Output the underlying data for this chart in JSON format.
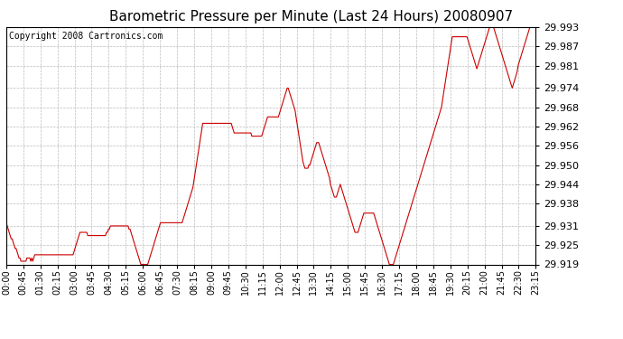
{
  "title": "Barometric Pressure per Minute (Last 24 Hours) 20080907",
  "copyright": "Copyright 2008 Cartronics.com",
  "yticks": [
    29.919,
    29.925,
    29.931,
    29.938,
    29.944,
    29.95,
    29.956,
    29.962,
    29.968,
    29.974,
    29.981,
    29.987,
    29.993
  ],
  "ylim": [
    29.919,
    29.993
  ],
  "xtick_labels": [
    "00:00",
    "00:45",
    "01:30",
    "02:15",
    "03:00",
    "03:45",
    "04:30",
    "05:15",
    "06:00",
    "06:45",
    "07:30",
    "08:15",
    "09:00",
    "09:45",
    "10:30",
    "11:15",
    "12:00",
    "12:45",
    "13:30",
    "14:15",
    "15:00",
    "15:45",
    "16:30",
    "17:15",
    "18:00",
    "18:45",
    "19:30",
    "20:15",
    "21:00",
    "21:45",
    "22:30",
    "23:15"
  ],
  "line_color": "#cc0000",
  "bg_color": "#ffffff",
  "grid_color": "#bbbbbb",
  "title_fontsize": 11,
  "copyright_fontsize": 7,
  "ytick_fontsize": 8,
  "xtick_fontsize": 7,
  "pressure_values": [
    29.932,
    29.931,
    29.93,
    29.929,
    29.928,
    29.927,
    29.927,
    29.926,
    29.925,
    29.924,
    29.924,
    29.923,
    29.922,
    29.921,
    29.921,
    29.92,
    29.92,
    29.92,
    29.92,
    29.92,
    29.92,
    29.921,
    29.921,
    29.921,
    29.921,
    29.92,
    29.921,
    29.92,
    29.921,
    29.922,
    29.922,
    29.922,
    29.922,
    29.922,
    29.922,
    29.922,
    29.922,
    29.922,
    29.922,
    29.922,
    29.922,
    29.922,
    29.922,
    29.922,
    29.922,
    29.922,
    29.922,
    29.922,
    29.922,
    29.922,
    29.922,
    29.922,
    29.922,
    29.922,
    29.922,
    29.922,
    29.922,
    29.922,
    29.922,
    29.922,
    29.922,
    29.922,
    29.922,
    29.922,
    29.922,
    29.922,
    29.922,
    29.922,
    29.922,
    29.923,
    29.924,
    29.925,
    29.926,
    29.927,
    29.928,
    29.929,
    29.929,
    29.929,
    29.929,
    29.929,
    29.929,
    29.929,
    29.929,
    29.928,
    29.928,
    29.928,
    29.928,
    29.928,
    29.928,
    29.928,
    29.928,
    29.928,
    29.928,
    29.928,
    29.928,
    29.928,
    29.928,
    29.928,
    29.928,
    29.928,
    29.928,
    29.928,
    29.929,
    29.929,
    29.93,
    29.93,
    29.931,
    29.931,
    29.931,
    29.931,
    29.931,
    29.931,
    29.931,
    29.931,
    29.931,
    29.931,
    29.931,
    29.931,
    29.931,
    29.931,
    29.931,
    29.931,
    29.931,
    29.931,
    29.931,
    29.93,
    29.93,
    29.929,
    29.928,
    29.927,
    29.926,
    29.925,
    29.924,
    29.923,
    29.922,
    29.921,
    29.92,
    29.919,
    29.919,
    29.919,
    29.919,
    29.919,
    29.919,
    29.919,
    29.919,
    29.92,
    29.921,
    29.922,
    29.923,
    29.924,
    29.925,
    29.926,
    29.927,
    29.928,
    29.929,
    29.93,
    29.931,
    29.932,
    29.932,
    29.932,
    29.932,
    29.932,
    29.932,
    29.932,
    29.932,
    29.932,
    29.932,
    29.932,
    29.932,
    29.932,
    29.932,
    29.932,
    29.932,
    29.932,
    29.932,
    29.932,
    29.932,
    29.932,
    29.932,
    29.932,
    29.933,
    29.934,
    29.935,
    29.936,
    29.937,
    29.938,
    29.939,
    29.94,
    29.941,
    29.942,
    29.943,
    29.945,
    29.947,
    29.949,
    29.951,
    29.953,
    29.955,
    29.957,
    29.959,
    29.961,
    29.963,
    29.963,
    29.963,
    29.963,
    29.963,
    29.963,
    29.963,
    29.963,
    29.963,
    29.963,
    29.963,
    29.963,
    29.963,
    29.963,
    29.963,
    29.963,
    29.963,
    29.963,
    29.963,
    29.963,
    29.963,
    29.963,
    29.963,
    29.963,
    29.963,
    29.963,
    29.963,
    29.963,
    29.963,
    29.963,
    29.962,
    29.961,
    29.96,
    29.96,
    29.96,
    29.96,
    29.96,
    29.96,
    29.96,
    29.96,
    29.96,
    29.96,
    29.96,
    29.96,
    29.96,
    29.96,
    29.96,
    29.96,
    29.96,
    29.96,
    29.959,
    29.959,
    29.959,
    29.959,
    29.959,
    29.959,
    29.959,
    29.959,
    29.959,
    29.959,
    29.959,
    29.96,
    29.961,
    29.962,
    29.963,
    29.964,
    29.965,
    29.965,
    29.965,
    29.965,
    29.965,
    29.965,
    29.965,
    29.965,
    29.965,
    29.965,
    29.965,
    29.965,
    29.966,
    29.967,
    29.968,
    29.969,
    29.97,
    29.971,
    29.972,
    29.973,
    29.974,
    29.974,
    29.973,
    29.972,
    29.971,
    29.97,
    29.969,
    29.968,
    29.967,
    29.965,
    29.963,
    29.961,
    29.959,
    29.957,
    29.955,
    29.953,
    29.951,
    29.95,
    29.949,
    29.949,
    29.949,
    29.949,
    29.95,
    29.95,
    29.951,
    29.952,
    29.953,
    29.954,
    29.955,
    29.956,
    29.957,
    29.957,
    29.957,
    29.956,
    29.955,
    29.954,
    29.953,
    29.952,
    29.951,
    29.95,
    29.949,
    29.948,
    29.947,
    29.946,
    29.944,
    29.943,
    29.942,
    29.941,
    29.94,
    29.94,
    29.94,
    29.941,
    29.942,
    29.943,
    29.944,
    29.943,
    29.942,
    29.941,
    29.94,
    29.939,
    29.938,
    29.937,
    29.936,
    29.935,
    29.934,
    29.933,
    29.932,
    29.931,
    29.93,
    29.929,
    29.929,
    29.929,
    29.929,
    29.93,
    29.931,
    29.932,
    29.933,
    29.934,
    29.935,
    29.935,
    29.935,
    29.935,
    29.935,
    29.935,
    29.935,
    29.935,
    29.935,
    29.935,
    29.935,
    29.934,
    29.933,
    29.932,
    29.931,
    29.93,
    29.929,
    29.928,
    29.927,
    29.926,
    29.925,
    29.924,
    29.923,
    29.922,
    29.921,
    29.92,
    29.919,
    29.919,
    29.919,
    29.919,
    29.919,
    29.92,
    29.921,
    29.922,
    29.923,
    29.924,
    29.925,
    29.926,
    29.927,
    29.928,
    29.929,
    29.93,
    29.931,
    29.932,
    29.933,
    29.934,
    29.935,
    29.936,
    29.937,
    29.938,
    29.939,
    29.94,
    29.941,
    29.942,
    29.943,
    29.944,
    29.945,
    29.946,
    29.947,
    29.948,
    29.949,
    29.95,
    29.951,
    29.952,
    29.953,
    29.954,
    29.955,
    29.956,
    29.957,
    29.958,
    29.959,
    29.96,
    29.961,
    29.962,
    29.963,
    29.964,
    29.965,
    29.966,
    29.967,
    29.968,
    29.97,
    29.972,
    29.974,
    29.976,
    29.978,
    29.98,
    29.982,
    29.984,
    29.986,
    29.988,
    29.99,
    29.99,
    29.99,
    29.99,
    29.99,
    29.99,
    29.99,
    29.99,
    29.99,
    29.99,
    29.99,
    29.99,
    29.99,
    29.99,
    29.99,
    29.99,
    29.989,
    29.988,
    29.987,
    29.986,
    29.985,
    29.984,
    29.983,
    29.982,
    29.981,
    29.98,
    29.981,
    29.982,
    29.983,
    29.984,
    29.985,
    29.986,
    29.987,
    29.988,
    29.989,
    29.99,
    29.991,
    29.992,
    29.993,
    29.993,
    29.993,
    29.993,
    29.993,
    29.992,
    29.991,
    29.99,
    29.989,
    29.988,
    29.987,
    29.986,
    29.985,
    29.984,
    29.983,
    29.982,
    29.981,
    29.98,
    29.979,
    29.978,
    29.977,
    29.976,
    29.975,
    29.974,
    29.975,
    29.976,
    29.977,
    29.978,
    29.979,
    29.981,
    29.982,
    29.983,
    29.984,
    29.985,
    29.986,
    29.987,
    29.988,
    29.989,
    29.99,
    29.991,
    29.992,
    29.993,
    29.993,
    29.993,
    29.993,
    29.993,
    29.993,
    29.993
  ]
}
